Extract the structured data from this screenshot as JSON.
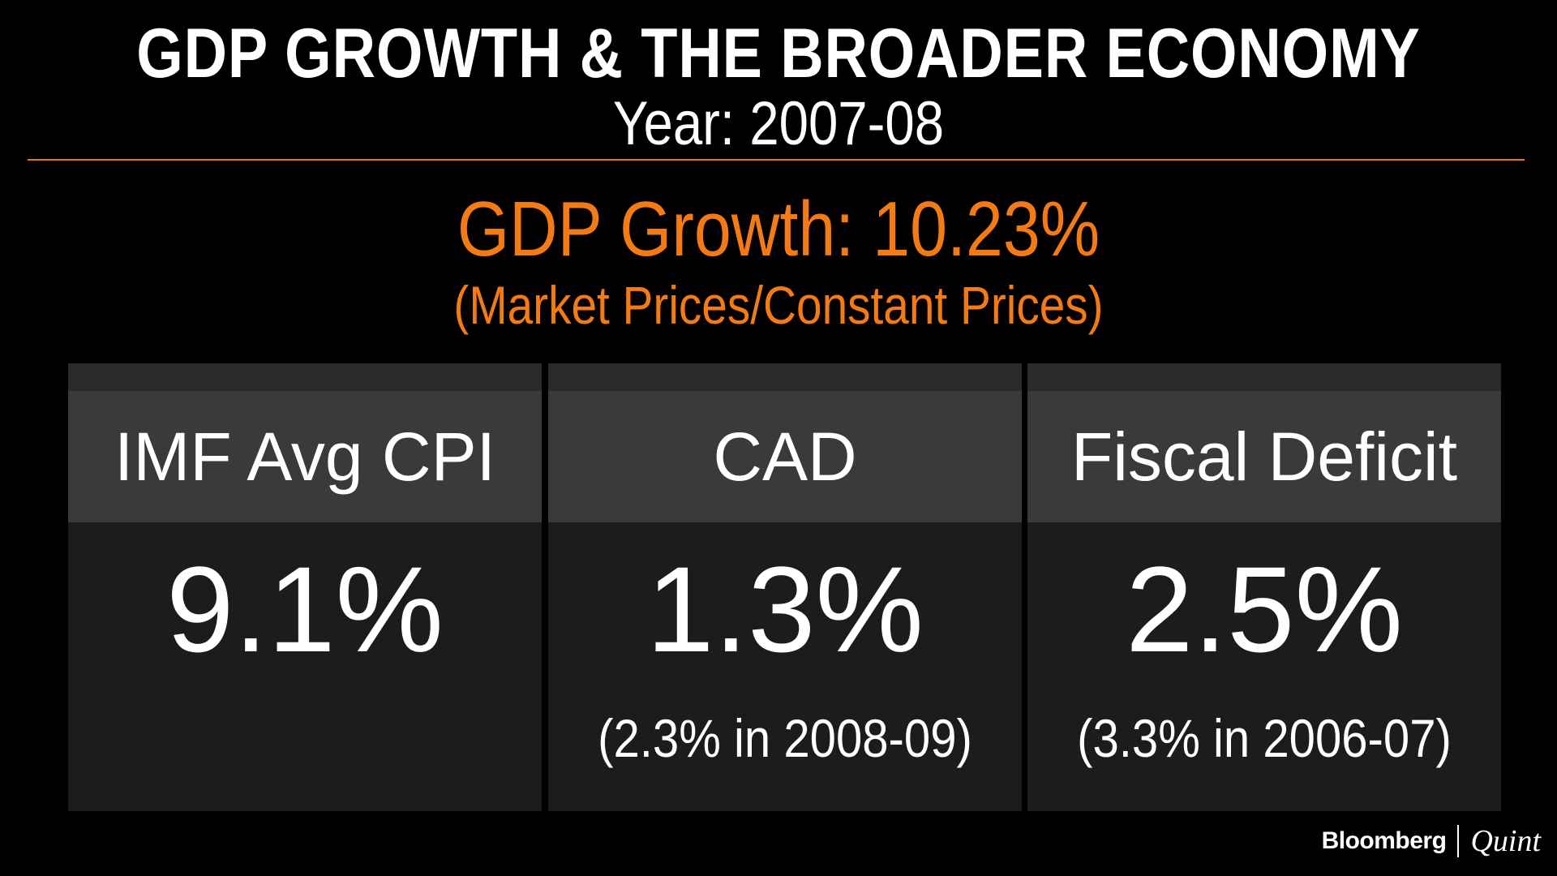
{
  "header": {
    "title": "GDP GROWTH & THE BROADER ECONOMY",
    "year": "Year: 2007-08"
  },
  "gdp": {
    "headline": "GDP Growth: 10.23%",
    "subtitle": "(Market Prices/Constant Prices)"
  },
  "panels": [
    {
      "label": "IMF Avg CPI",
      "value": "9.1%",
      "note": ""
    },
    {
      "label": "CAD",
      "value": "1.3%",
      "note": "(2.3% in 2008-09)"
    },
    {
      "label": "Fiscal Deficit",
      "value": "2.5%",
      "note": "(3.3% in 2006-07)"
    }
  ],
  "brand": {
    "name": "Bloomberg",
    "partner": "Quint"
  },
  "colors": {
    "accent": "#f47a14",
    "background": "#000000",
    "panel_header": "#3a3a3a",
    "panel_body": "#1c1c1c"
  }
}
